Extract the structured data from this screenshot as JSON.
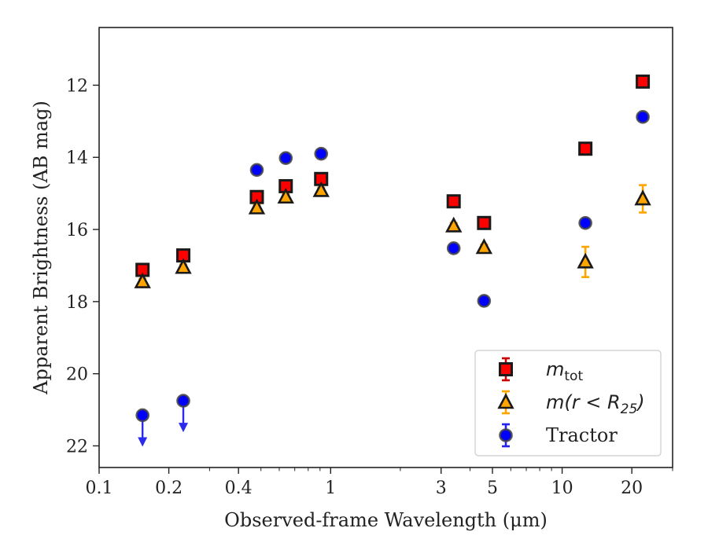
{
  "chart_data": {
    "type": "scatter",
    "xlabel": "Observed-frame Wavelength (μm)",
    "ylabel": "Apparent Brightness (AB mag)",
    "x_scale": "log",
    "xlim": [
      0.1,
      30
    ],
    "ylim": [
      22.6,
      10.4
    ],
    "y_inverted": true,
    "x_ticks": [
      {
        "value": 0.1,
        "label": "0.1"
      },
      {
        "value": 0.2,
        "label": "0.2"
      },
      {
        "value": 0.4,
        "label": "0.4"
      },
      {
        "value": 1,
        "label": "1"
      },
      {
        "value": 3,
        "label": "3"
      },
      {
        "value": 5,
        "label": "5"
      },
      {
        "value": 10,
        "label": "10"
      },
      {
        "value": 20,
        "label": "20"
      }
    ],
    "y_ticks": [
      {
        "value": 12,
        "label": "12"
      },
      {
        "value": 14,
        "label": "14"
      },
      {
        "value": 16,
        "label": "16"
      },
      {
        "value": 18,
        "label": "18"
      },
      {
        "value": 20,
        "label": "20"
      },
      {
        "value": 22,
        "label": "22"
      }
    ],
    "grid": false,
    "legend_position": "bottom-right",
    "series": [
      {
        "name": "m_tot",
        "legend_parts": {
          "main": "m",
          "sub": "tot"
        },
        "marker": "square",
        "fill": "#ff0000",
        "edge": "#1a1a1a",
        "errcolor": "#cc0000",
        "points": [
          {
            "x": 0.154,
            "y": 17.12,
            "err": 0.08
          },
          {
            "x": 0.231,
            "y": 16.72,
            "err": 0.08
          },
          {
            "x": 0.48,
            "y": 15.1,
            "err": 0.08
          },
          {
            "x": 0.64,
            "y": 14.8,
            "err": 0.08
          },
          {
            "x": 0.91,
            "y": 14.6,
            "err": 0.08
          },
          {
            "x": 3.4,
            "y": 15.22,
            "err": 0.08
          },
          {
            "x": 4.6,
            "y": 15.82,
            "err": 0.08
          },
          {
            "x": 12.6,
            "y": 13.76,
            "err": 0.08
          },
          {
            "x": 22.3,
            "y": 11.9,
            "err": 0.08
          }
        ]
      },
      {
        "name": "m(r<R_25)",
        "legend_parts": {
          "main": "m(r < R",
          "sub": "25",
          "tail": ")"
        },
        "marker": "triangle",
        "fill": "#ffa500",
        "edge": "#1a1a1a",
        "errcolor": "#ffa500",
        "points": [
          {
            "x": 0.154,
            "y": 17.45,
            "err": 0.08
          },
          {
            "x": 0.231,
            "y": 17.05,
            "err": 0.08
          },
          {
            "x": 0.48,
            "y": 15.4,
            "err": 0.08
          },
          {
            "x": 0.64,
            "y": 15.1,
            "err": 0.08
          },
          {
            "x": 0.91,
            "y": 14.92,
            "err": 0.08
          },
          {
            "x": 3.4,
            "y": 15.9,
            "err": 0.08
          },
          {
            "x": 4.6,
            "y": 16.5,
            "err": 0.08
          },
          {
            "x": 12.6,
            "y": 16.9,
            "err": 0.42
          },
          {
            "x": 22.3,
            "y": 15.15,
            "err": 0.38
          }
        ]
      },
      {
        "name": "Tractor",
        "legend_parts": {
          "main": "Tractor"
        },
        "marker": "circle",
        "fill": "#0000ff",
        "edge": "#444444",
        "errcolor": "#2222ee",
        "points": [
          {
            "x": 0.154,
            "y": 21.15,
            "upper_limit": true
          },
          {
            "x": 0.231,
            "y": 20.75,
            "upper_limit": true
          },
          {
            "x": 0.48,
            "y": 14.35,
            "err": 0.06
          },
          {
            "x": 0.64,
            "y": 14.02,
            "err": 0.06
          },
          {
            "x": 0.91,
            "y": 13.9,
            "err": 0.06
          },
          {
            "x": 3.4,
            "y": 16.52,
            "err": 0.06
          },
          {
            "x": 4.6,
            "y": 17.98,
            "err": 0.06
          },
          {
            "x": 12.6,
            "y": 15.82,
            "err": 0.06
          },
          {
            "x": 22.3,
            "y": 12.88,
            "err": 0.06
          }
        ]
      }
    ]
  }
}
